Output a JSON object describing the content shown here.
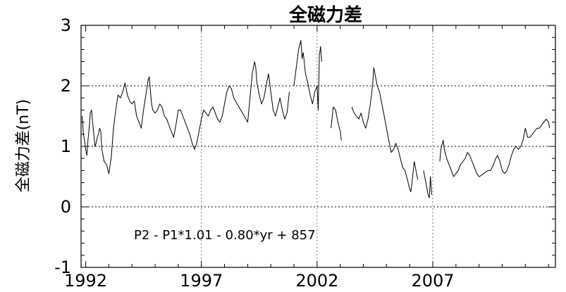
{
  "chart_data": {
    "type": "line",
    "title": "全磁力差",
    "ylabel": "全磁力差(nT)",
    "xlabel": "",
    "annotation": "P2 - P1*1.01 - 0.80*yr + 857",
    "xlim": [
      1991.8,
      2012.3
    ],
    "ylim": [
      -1,
      3
    ],
    "x_ticks": [
      1992,
      1997,
      2002,
      2007
    ],
    "y_ticks": [
      -1,
      0,
      1,
      2,
      3
    ],
    "grid": {
      "x": [
        1997,
        2002,
        2007
      ],
      "y": [
        0,
        1,
        2
      ]
    },
    "series": [
      {
        "color": "#000000",
        "segments": [
          [
            [
              1991.85,
              1.5
            ],
            [
              1991.9,
              1.2
            ],
            [
              1991.95,
              1.1
            ],
            [
              1992.0,
              0.95
            ],
            [
              1992.05,
              0.85
            ],
            [
              1992.1,
              1.1
            ],
            [
              1992.15,
              1.3
            ],
            [
              1992.2,
              1.55
            ],
            [
              1992.25,
              1.6
            ],
            [
              1992.3,
              1.4
            ],
            [
              1992.35,
              1.2
            ],
            [
              1992.4,
              1.0
            ],
            [
              1992.45,
              1.05
            ],
            [
              1992.5,
              1.15
            ],
            [
              1992.55,
              1.2
            ],
            [
              1992.6,
              1.3
            ],
            [
              1992.65,
              1.25
            ],
            [
              1992.7,
              0.95
            ],
            [
              1992.8,
              0.75
            ],
            [
              1992.9,
              0.7
            ],
            [
              1993.0,
              0.55
            ],
            [
              1993.1,
              0.8
            ],
            [
              1993.2,
              1.3
            ],
            [
              1993.3,
              1.6
            ],
            [
              1993.4,
              1.85
            ],
            [
              1993.5,
              1.8
            ],
            [
              1993.6,
              1.9
            ],
            [
              1993.7,
              2.05
            ],
            [
              1993.8,
              1.85
            ],
            [
              1993.9,
              1.75
            ],
            [
              1994.0,
              1.7
            ],
            [
              1994.1,
              1.75
            ],
            [
              1994.2,
              1.5
            ],
            [
              1994.3,
              1.4
            ],
            [
              1994.4,
              1.3
            ],
            [
              1994.5,
              1.6
            ],
            [
              1994.6,
              1.85
            ],
            [
              1994.7,
              2.1
            ],
            [
              1994.75,
              2.15
            ],
            [
              1994.8,
              1.9
            ],
            [
              1994.85,
              1.7
            ],
            [
              1994.9,
              1.6
            ],
            [
              1995.0,
              1.55
            ],
            [
              1995.1,
              1.6
            ],
            [
              1995.2,
              1.7
            ],
            [
              1995.3,
              1.65
            ],
            [
              1995.4,
              1.5
            ],
            [
              1995.5,
              1.45
            ],
            [
              1995.6,
              1.35
            ],
            [
              1995.7,
              1.25
            ],
            [
              1995.8,
              1.15
            ],
            [
              1995.9,
              1.35
            ],
            [
              1996.0,
              1.6
            ],
            [
              1996.1,
              1.6
            ],
            [
              1996.2,
              1.5
            ],
            [
              1996.3,
              1.4
            ],
            [
              1996.4,
              1.3
            ],
            [
              1996.5,
              1.2
            ],
            [
              1996.6,
              1.05
            ],
            [
              1996.7,
              0.95
            ],
            [
              1996.8,
              1.05
            ],
            [
              1996.9,
              1.25
            ],
            [
              1997.0,
              1.45
            ],
            [
              1997.1,
              1.6
            ],
            [
              1997.2,
              1.55
            ],
            [
              1997.3,
              1.5
            ],
            [
              1997.4,
              1.6
            ],
            [
              1997.5,
              1.65
            ],
            [
              1997.6,
              1.55
            ],
            [
              1997.7,
              1.45
            ],
            [
              1997.8,
              1.4
            ],
            [
              1997.9,
              1.5
            ],
            [
              1998.0,
              1.7
            ],
            [
              1998.1,
              1.9
            ],
            [
              1998.2,
              2.0
            ],
            [
              1998.3,
              1.95
            ],
            [
              1998.4,
              1.8
            ]
          ],
          [
            [
              1998.4,
              1.8
            ],
            [
              1999.0,
              1.4
            ],
            [
              1999.1,
              1.8
            ],
            [
              1999.2,
              2.2
            ],
            [
              1999.3,
              2.4
            ],
            [
              1999.35,
              2.3
            ],
            [
              1999.4,
              2.05
            ],
            [
              1999.5,
              1.85
            ],
            [
              1999.6,
              1.7
            ],
            [
              1999.7,
              1.8
            ],
            [
              1999.8,
              2.0
            ],
            [
              1999.9,
              2.2
            ],
            [
              2000.0,
              1.9
            ],
            [
              2000.1,
              1.6
            ],
            [
              2000.2,
              1.5
            ],
            [
              2000.3,
              1.65
            ],
            [
              2000.4,
              1.8
            ],
            [
              2000.5,
              1.6
            ],
            [
              2000.6,
              1.45
            ],
            [
              2000.7,
              1.55
            ],
            [
              2000.8,
              1.9
            ]
          ],
          [
            [
              2001.0,
              2.0
            ],
            [
              2001.1,
              2.3
            ],
            [
              2001.2,
              2.6
            ],
            [
              2001.3,
              2.75
            ],
            [
              2001.35,
              2.45
            ],
            [
              2001.4,
              2.55
            ],
            [
              2001.5,
              2.2
            ],
            [
              2001.6,
              2.05
            ],
            [
              2001.7,
              1.85
            ],
            [
              2001.8,
              1.7
            ],
            [
              2001.9,
              1.9
            ],
            [
              2002.0,
              2.0
            ],
            [
              2002.05,
              1.6
            ],
            [
              2002.1,
              2.5
            ],
            [
              2002.15,
              2.65
            ],
            [
              2002.2,
              2.4
            ]
          ],
          [
            [
              2002.6,
              1.3
            ],
            [
              2002.7,
              1.65
            ],
            [
              2002.8,
              1.6
            ],
            [
              2002.9,
              1.4
            ],
            [
              2003.0,
              1.25
            ],
            [
              2003.05,
              1.1
            ]
          ],
          [
            [
              2003.5,
              1.65
            ],
            [
              2003.6,
              1.55
            ],
            [
              2003.7,
              1.5
            ],
            [
              2003.8,
              1.45
            ],
            [
              2003.9,
              1.55
            ],
            [
              2004.0,
              1.4
            ],
            [
              2004.1,
              1.3
            ],
            [
              2004.2,
              1.45
            ],
            [
              2004.3,
              1.7
            ],
            [
              2004.4,
              2.0
            ],
            [
              2004.45,
              2.3
            ],
            [
              2004.5,
              2.2
            ],
            [
              2004.6,
              2.0
            ],
            [
              2004.7,
              1.9
            ],
            [
              2004.8,
              1.7
            ],
            [
              2004.9,
              1.5
            ],
            [
              2005.0,
              1.3
            ],
            [
              2005.1,
              1.1
            ],
            [
              2005.2,
              0.9
            ],
            [
              2005.3,
              0.95
            ],
            [
              2005.4,
              1.05
            ],
            [
              2005.5,
              0.95
            ],
            [
              2005.6,
              0.8
            ],
            [
              2005.7,
              0.65
            ],
            [
              2005.8,
              0.6
            ],
            [
              2005.9,
              0.45
            ],
            [
              2006.0,
              0.3
            ],
            [
              2006.05,
              0.25
            ],
            [
              2006.1,
              0.4
            ],
            [
              2006.2,
              0.75
            ],
            [
              2006.3,
              0.55
            ],
            [
              2006.35,
              0.45
            ]
          ],
          [
            [
              2006.6,
              0.6
            ],
            [
              2006.7,
              0.4
            ],
            [
              2006.8,
              0.2
            ],
            [
              2006.85,
              0.15
            ],
            [
              2006.9,
              0.5
            ],
            [
              2006.95,
              0.2
            ]
          ],
          [
            [
              2007.3,
              0.75
            ],
            [
              2007.35,
              0.95
            ],
            [
              2007.45,
              1.1
            ],
            [
              2007.5,
              0.95
            ],
            [
              2007.6,
              0.8
            ],
            [
              2007.7,
              0.7
            ],
            [
              2007.8,
              0.6
            ],
            [
              2007.9,
              0.5
            ],
            [
              2008.0,
              0.55
            ],
            [
              2008.1,
              0.6
            ],
            [
              2008.2,
              0.7
            ],
            [
              2008.3,
              0.75
            ],
            [
              2008.4,
              0.8
            ],
            [
              2008.5,
              0.9
            ],
            [
              2008.6,
              0.85
            ],
            [
              2008.7,
              0.75
            ],
            [
              2008.8,
              0.65
            ],
            [
              2008.9,
              0.55
            ],
            [
              2009.0,
              0.5
            ],
            [
              2009.1,
              0.52
            ],
            [
              2009.2,
              0.55
            ],
            [
              2009.3,
              0.58
            ],
            [
              2009.4,
              0.6
            ],
            [
              2009.5,
              0.6
            ],
            [
              2009.6,
              0.68
            ],
            [
              2009.7,
              0.78
            ],
            [
              2009.8,
              0.85
            ],
            [
              2009.9,
              0.75
            ],
            [
              2010.0,
              0.6
            ],
            [
              2010.1,
              0.55
            ],
            [
              2010.2,
              0.6
            ],
            [
              2010.3,
              0.7
            ],
            [
              2010.4,
              0.85
            ],
            [
              2010.5,
              0.95
            ],
            [
              2010.6,
              1.0
            ],
            [
              2010.7,
              0.95
            ],
            [
              2010.8,
              1.0
            ],
            [
              2010.9,
              1.1
            ],
            [
              2011.0,
              1.3
            ],
            [
              2011.1,
              1.15
            ],
            [
              2011.2,
              1.15
            ],
            [
              2011.3,
              1.2
            ],
            [
              2011.4,
              1.25
            ],
            [
              2011.5,
              1.3
            ],
            [
              2011.6,
              1.3
            ],
            [
              2011.7,
              1.35
            ],
            [
              2011.8,
              1.4
            ],
            [
              2011.9,
              1.45
            ],
            [
              2012.0,
              1.4
            ],
            [
              2012.05,
              1.3
            ]
          ]
        ]
      }
    ]
  }
}
